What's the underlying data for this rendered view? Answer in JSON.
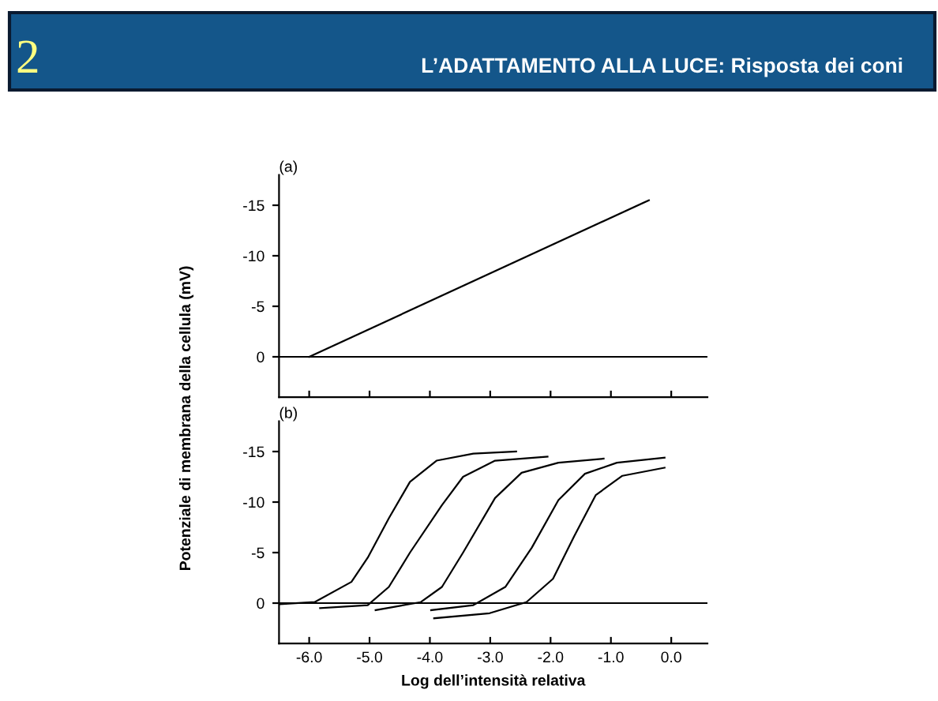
{
  "chart_data": [
    {
      "type": "line",
      "title": "L’ADATTAMENTO ALLA LUCE: Risposta dei coni",
      "ylabel": "Potenziale di membrana della cellula (mV)",
      "annotations": [
        "2",
        "(a)"
      ],
      "xlim": [
        -6.5,
        0.6
      ],
      "xticks": [
        {
          "value": -6,
          "label": null
        },
        {
          "value": -5,
          "label": null
        },
        {
          "value": -4,
          "label": null
        },
        {
          "value": -3,
          "label": null
        },
        {
          "value": -2,
          "label": null
        },
        {
          "value": -1,
          "label": null
        },
        {
          "value": 0,
          "label": null
        }
      ],
      "ylim": [
        4,
        -18
      ],
      "yticks": [
        0,
        -5,
        -10,
        -15
      ],
      "tick_labels": "y",
      "grid": false,
      "legend": false,
      "series": [
        {
          "color": "#000000",
          "x": [
            -6.5,
            0.6
          ],
          "values": [
            0,
            0
          ]
        },
        {
          "color": "#000000",
          "x": [
            -6.0,
            -0.37
          ],
          "values": [
            0,
            -15.5
          ]
        }
      ]
    },
    {
      "type": "line",
      "xlabel": "Log dell’intensità relativa",
      "annotations": [
        "(b)"
      ],
      "xlim": [
        -6.5,
        0.6
      ],
      "xticks": [
        {
          "value": -6,
          "label": "-6.0"
        },
        {
          "value": -5,
          "label": "-5.0"
        },
        {
          "value": -4,
          "label": "-4.0"
        },
        {
          "value": -3,
          "label": "-3.0"
        },
        {
          "value": -2,
          "label": "-2.0"
        },
        {
          "value": -1,
          "label": "-1.0"
        },
        {
          "value": 0,
          "label": "0.0"
        }
      ],
      "ylim": [
        4,
        -18
      ],
      "yticks": [
        0,
        -5,
        -10,
        -15
      ],
      "grid": false,
      "legend": false,
      "series": [
        {
          "color": "#000000",
          "x": [
            -6.5,
            0.6
          ],
          "values": [
            0,
            0
          ]
        },
        {
          "color": "#000000",
          "x": [
            -6.48,
            -5.91,
            -5.3,
            -5.03,
            -4.68,
            -4.33,
            -3.89,
            -3.28,
            -2.57
          ],
          "values": [
            0.1,
            -0.1,
            -2.1,
            -4.5,
            -8.4,
            -12.0,
            -14.1,
            -14.8,
            -15.0
          ]
        },
        {
          "color": "#000000",
          "x": [
            -5.82,
            -5.03,
            -4.68,
            -4.33,
            -3.8,
            -3.45,
            -2.92,
            -2.05
          ],
          "values": [
            0.5,
            0.2,
            -1.6,
            -5.0,
            -9.7,
            -12.5,
            -14.1,
            -14.5
          ]
        },
        {
          "color": "#000000",
          "x": [
            -4.9,
            -4.15,
            -3.8,
            -3.45,
            -2.92,
            -2.48,
            -1.87,
            -1.12
          ],
          "values": [
            0.7,
            -0.1,
            -1.6,
            -5.0,
            -10.4,
            -12.9,
            -13.9,
            -14.3
          ]
        },
        {
          "color": "#000000",
          "x": [
            -3.98,
            -3.28,
            -2.75,
            -2.31,
            -1.87,
            -1.43,
            -0.9,
            -0.11
          ],
          "values": [
            0.7,
            0.2,
            -1.6,
            -5.5,
            -10.2,
            -12.8,
            -13.9,
            -14.4
          ]
        },
        {
          "color": "#000000",
          "x": [
            -3.93,
            -3.01,
            -2.4,
            -1.96,
            -1.61,
            -1.25,
            -0.81,
            -0.11
          ],
          "values": [
            1.5,
            1.0,
            -0.1,
            -2.4,
            -6.6,
            -10.7,
            -12.6,
            -13.4
          ]
        }
      ]
    }
  ]
}
